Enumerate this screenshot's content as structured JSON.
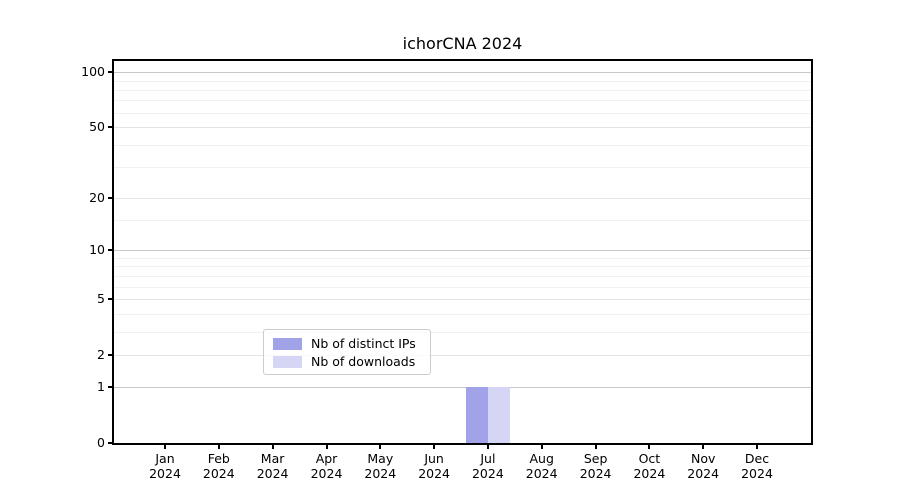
{
  "chart_data": {
    "type": "bar",
    "title": "ichorCNA 2024",
    "categories": [
      "Jan",
      "Feb",
      "Mar",
      "Apr",
      "May",
      "Jun",
      "Jul",
      "Aug",
      "Sep",
      "Oct",
      "Nov",
      "Dec"
    ],
    "category_year": "2024",
    "series": [
      {
        "name": "Nb of distinct IPs",
        "color": "#A2A2E9",
        "values": [
          0,
          0,
          0,
          0,
          0,
          0,
          1,
          0,
          0,
          0,
          0,
          0
        ]
      },
      {
        "name": "Nb of downloads",
        "color": "#D5D5F5",
        "values": [
          0,
          0,
          0,
          0,
          0,
          0,
          1,
          0,
          0,
          0,
          0,
          0
        ]
      }
    ],
    "xlabel": "",
    "ylabel": "",
    "yticks": [
      0,
      1,
      2,
      5,
      10,
      20,
      50,
      100
    ],
    "decade_ticks": [
      1,
      10,
      100
    ],
    "minor_gridlines": [
      3,
      4,
      6,
      7,
      8,
      9,
      15,
      30,
      40,
      60,
      70,
      80,
      90
    ],
    "ylim": [
      0,
      115
    ],
    "yscale": "log1p",
    "grid": "horizontal",
    "legend_position": "lower-center"
  },
  "legend": {
    "items": [
      {
        "label": "Nb of distinct IPs",
        "color": "#A2A2E9"
      },
      {
        "label": "Nb of downloads",
        "color": "#D5D5F5"
      }
    ]
  }
}
